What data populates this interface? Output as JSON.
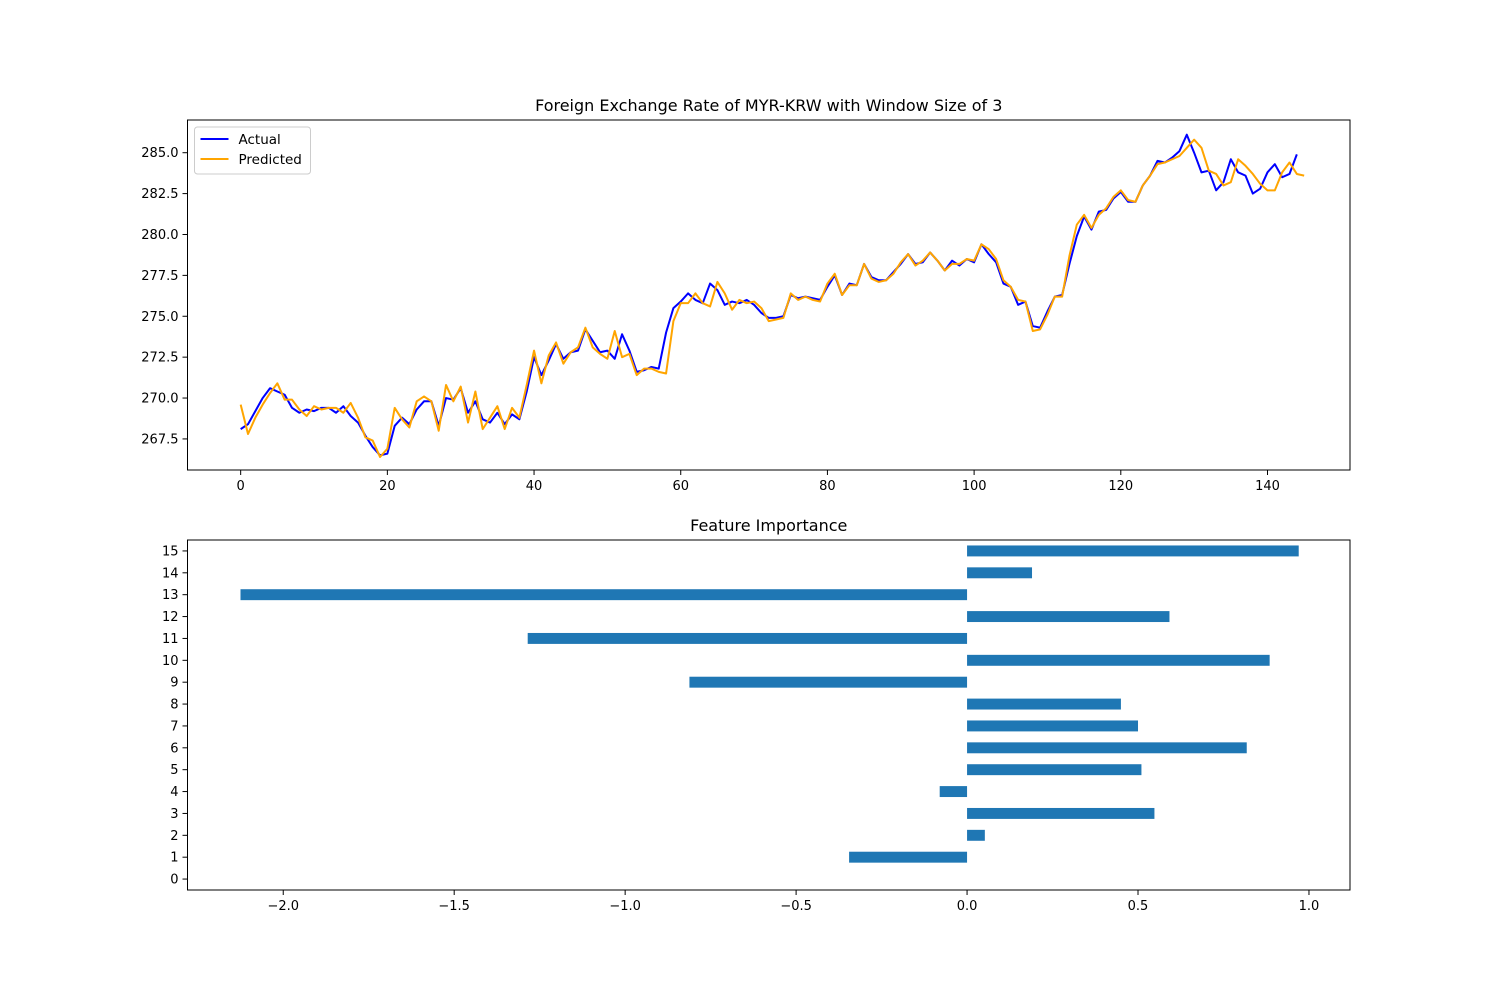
{
  "chart_data": [
    {
      "type": "line",
      "title": "Foreign Exchange Rate of MYR-KRW with Window Size of 3",
      "xlabel": "",
      "ylabel": "",
      "xlim": [
        -7.25,
        151.25
      ],
      "ylim": [
        265.6,
        287.0
      ],
      "xticks": [
        0,
        20,
        40,
        60,
        80,
        100,
        120,
        140
      ],
      "yticks": [
        267.5,
        270.0,
        272.5,
        275.0,
        277.5,
        280.0,
        282.5,
        285.0
      ],
      "ytick_labels": [
        "267.5",
        "270.0",
        "272.5",
        "275.0",
        "277.5",
        "280.0",
        "282.5",
        "285.0"
      ],
      "grid": false,
      "legend_position": "top-left",
      "series": [
        {
          "name": "Actual",
          "color": "#0000ff",
          "values": [
            268.1,
            268.4,
            269.2,
            270.0,
            270.6,
            270.4,
            270.2,
            269.4,
            269.1,
            269.3,
            269.2,
            269.4,
            269.4,
            269.1,
            269.5,
            268.9,
            268.5,
            267.7,
            267.0,
            266.5,
            266.6,
            268.3,
            268.8,
            268.4,
            269.3,
            269.8,
            269.8,
            268.3,
            270.0,
            269.9,
            270.6,
            269.1,
            269.8,
            268.7,
            268.5,
            269.1,
            268.4,
            269.0,
            268.7,
            270.4,
            272.5,
            271.4,
            272.3,
            273.3,
            272.4,
            272.8,
            272.9,
            274.2,
            273.5,
            272.8,
            272.9,
            272.4,
            273.9,
            272.9,
            271.6,
            271.7,
            271.9,
            271.8,
            274.0,
            275.5,
            275.9,
            276.4,
            276.0,
            275.8,
            277.0,
            276.6,
            275.7,
            275.9,
            275.8,
            276.0,
            275.7,
            275.2,
            274.9,
            274.9,
            275.0,
            276.3,
            276.1,
            276.2,
            276.1,
            276.0,
            276.8,
            277.5,
            276.3,
            277.0,
            276.9,
            278.2,
            277.4,
            277.2,
            277.2,
            277.7,
            278.2,
            278.8,
            278.2,
            278.3,
            278.9,
            278.4,
            277.8,
            278.4,
            278.1,
            278.5,
            278.3,
            279.4,
            278.8,
            278.3,
            277.0,
            276.8,
            275.7,
            275.9,
            274.4,
            274.3,
            275.3,
            276.2,
            276.3,
            278.2,
            279.9,
            281.1,
            280.3,
            281.4,
            281.5,
            282.2,
            282.6,
            282.0,
            282.0,
            283.0,
            283.6,
            284.5,
            284.4,
            284.7,
            285.1,
            286.1,
            285.0,
            283.8,
            283.9,
            282.7,
            283.2,
            284.6,
            283.8,
            283.6,
            282.5,
            282.8,
            283.8,
            284.3,
            283.5,
            283.7,
            284.9
          ]
        },
        {
          "name": "Predicted",
          "color": "#ffa500",
          "values": [
            269.6,
            267.8,
            268.8,
            269.6,
            270.3,
            270.9,
            269.9,
            269.9,
            269.3,
            268.9,
            269.5,
            269.3,
            269.4,
            269.4,
            269.1,
            269.7,
            268.8,
            267.6,
            267.4,
            266.4,
            266.9,
            269.4,
            268.7,
            268.2,
            269.8,
            270.1,
            269.8,
            268.0,
            270.8,
            269.8,
            270.7,
            268.5,
            270.4,
            268.1,
            268.8,
            269.5,
            268.1,
            269.4,
            268.8,
            270.8,
            272.9,
            270.9,
            272.6,
            273.4,
            272.1,
            272.8,
            273.1,
            274.3,
            273.1,
            272.7,
            272.4,
            274.1,
            272.5,
            272.7,
            271.4,
            271.8,
            271.8,
            271.6,
            271.5,
            274.7,
            275.8,
            275.8,
            276.4,
            275.8,
            275.6,
            277.1,
            276.4,
            275.4,
            276.0,
            275.8,
            275.9,
            275.5,
            274.7,
            274.8,
            274.9,
            276.4,
            276.0,
            276.2,
            276.0,
            275.9,
            277.0,
            277.6,
            276.3,
            276.9,
            276.9,
            278.2,
            277.3,
            277.1,
            277.2,
            277.6,
            278.3,
            278.8,
            278.1,
            278.4,
            278.9,
            278.4,
            277.8,
            278.2,
            278.2,
            278.5,
            278.4,
            279.4,
            279.1,
            278.5,
            277.2,
            276.8,
            276.0,
            275.9,
            274.1,
            274.2,
            275.1,
            276.2,
            276.2,
            278.7,
            280.6,
            281.2,
            280.4,
            281.2,
            281.6,
            282.3,
            282.7,
            282.1,
            282.0,
            283.0,
            283.6,
            284.3,
            284.4,
            284.6,
            284.8,
            285.3,
            285.8,
            285.3,
            283.9,
            283.7,
            283.0,
            283.2,
            284.6,
            284.2,
            283.7,
            283.1,
            282.7,
            282.7,
            283.8,
            284.4,
            283.7,
            283.6
          ]
        }
      ]
    },
    {
      "type": "bar",
      "orientation": "horizontal",
      "title": "Feature Importance",
      "xlabel": "",
      "ylabel": "",
      "xlim": [
        -2.28,
        1.12
      ],
      "ylim": [
        -0.5,
        15.5
      ],
      "xticks": [
        -2.0,
        -1.5,
        -1.0,
        -0.5,
        0.0,
        0.5,
        1.0
      ],
      "xtick_labels": [
        "−2.0",
        "−1.5",
        "−1.0",
        "−0.5",
        "0.0",
        "0.5",
        "1.0"
      ],
      "grid": false,
      "color": "#1f77b4",
      "categories": [
        "0",
        "1",
        "2",
        "3",
        "4",
        "5",
        "6",
        "7",
        "8",
        "9",
        "10",
        "11",
        "12",
        "13",
        "14",
        "15"
      ],
      "values": [
        0.0,
        -0.345,
        0.052,
        0.548,
        -0.08,
        0.51,
        0.818,
        0.5,
        0.45,
        -0.812,
        0.885,
        -1.285,
        0.592,
        -2.125,
        0.19,
        0.97
      ]
    }
  ]
}
